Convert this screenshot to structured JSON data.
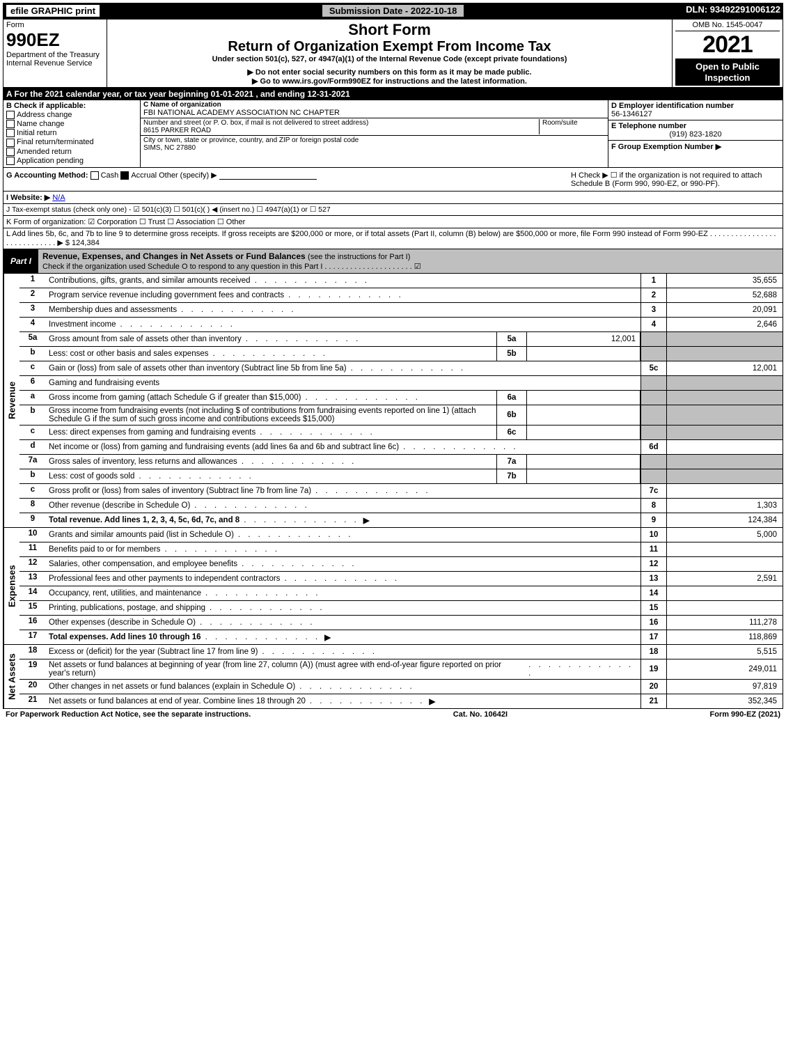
{
  "topbar": {
    "efile": "efile GRAPHIC print",
    "submission": "Submission Date - 2022-10-18",
    "dln": "DLN: 93492291006122"
  },
  "header": {
    "form": "Form",
    "form_num": "990EZ",
    "dept": "Department of the Treasury",
    "irs": "Internal Revenue Service",
    "short_form": "Short Form",
    "title": "Return of Organization Exempt From Income Tax",
    "under": "Under section 501(c), 527, or 4947(a)(1) of the Internal Revenue Code (except private foundations)",
    "no_ssn": "▶ Do not enter social security numbers on this form as it may be made public.",
    "goto": "▶ Go to www.irs.gov/Form990EZ for instructions and the latest information.",
    "omb": "OMB No. 1545-0047",
    "year": "2021",
    "open": "Open to Public Inspection"
  },
  "section_a": "A  For the 2021 calendar year, or tax year beginning 01-01-2021 , and ending 12-31-2021",
  "section_b": {
    "label": "B  Check if applicable:",
    "opts": [
      "Address change",
      "Name change",
      "Initial return",
      "Final return/terminated",
      "Amended return",
      "Application pending"
    ]
  },
  "section_c": {
    "name_lbl": "C Name of organization",
    "name": "FBI NATIONAL ACADEMY ASSOCIATION NC CHAPTER",
    "street_lbl": "Number and street (or P. O. box, if mail is not delivered to street address)",
    "room_lbl": "Room/suite",
    "street": "8615 PARKER ROAD",
    "city_lbl": "City or town, state or province, country, and ZIP or foreign postal code",
    "city": "SIMS, NC  27880"
  },
  "section_d": {
    "ein_lbl": "D Employer identification number",
    "ein": "56-1346127",
    "tel_lbl": "E Telephone number",
    "tel": "(919) 823-1820",
    "grp_lbl": "F Group Exemption Number  ▶"
  },
  "row_g": {
    "g": "G Accounting Method:",
    "cash": "Cash",
    "accrual": "Accrual",
    "other": "Other (specify) ▶",
    "h": "H  Check ▶ ☐ if the organization is not required to attach Schedule B (Form 990, 990-EZ, or 990-PF)."
  },
  "row_i": {
    "label": "I Website: ▶",
    "val": "N/A"
  },
  "row_j": "J Tax-exempt status (check only one) - ☑ 501(c)(3) ☐ 501(c)(  ) ◀ (insert no.) ☐ 4947(a)(1) or ☐ 527",
  "row_k": "K Form of organization:  ☑ Corporation  ☐ Trust  ☐ Association  ☐ Other",
  "row_l": {
    "text": "L Add lines 5b, 6c, and 7b to line 9 to determine gross receipts. If gross receipts are $200,000 or more, or if total assets (Part II, column (B) below) are $500,000 or more, file Form 990 instead of Form 990-EZ  . . . . . . . . . . . . . . . . . . . . . . . . . . . . ▶ $",
    "amount": "124,384"
  },
  "part1": {
    "label": "Part I",
    "title": "Revenue, Expenses, and Changes in Net Assets or Fund Balances",
    "sub": "(see the instructions for Part I)",
    "check": "Check if the organization used Schedule O to respond to any question in this Part I . . . . . . . . . . . . . . . . . . . . . ☑"
  },
  "revenue_label": "Revenue",
  "expenses_label": "Expenses",
  "netassets_label": "Net Assets",
  "lines": {
    "l1": {
      "n": "1",
      "d": "Contributions, gifts, grants, and similar amounts received",
      "r": "1",
      "a": "35,655"
    },
    "l2": {
      "n": "2",
      "d": "Program service revenue including government fees and contracts",
      "r": "2",
      "a": "52,688"
    },
    "l3": {
      "n": "3",
      "d": "Membership dues and assessments",
      "r": "3",
      "a": "20,091"
    },
    "l4": {
      "n": "4",
      "d": "Investment income",
      "r": "4",
      "a": "2,646"
    },
    "l5a": {
      "n": "5a",
      "d": "Gross amount from sale of assets other than inventory",
      "sb": "5a",
      "sv": "12,001"
    },
    "l5b": {
      "n": "b",
      "d": "Less: cost or other basis and sales expenses",
      "sb": "5b",
      "sv": ""
    },
    "l5c": {
      "n": "c",
      "d": "Gain or (loss) from sale of assets other than inventory (Subtract line 5b from line 5a)",
      "r": "5c",
      "a": "12,001"
    },
    "l6": {
      "n": "6",
      "d": "Gaming and fundraising events"
    },
    "l6a": {
      "n": "a",
      "d": "Gross income from gaming (attach Schedule G if greater than $15,000)",
      "sb": "6a",
      "sv": ""
    },
    "l6b": {
      "n": "b",
      "d": "Gross income from fundraising events (not including $                of contributions from fundraising events reported on line 1) (attach Schedule G if the sum of such gross income and contributions exceeds $15,000)",
      "sb": "6b",
      "sv": ""
    },
    "l6c": {
      "n": "c",
      "d": "Less: direct expenses from gaming and fundraising events",
      "sb": "6c",
      "sv": ""
    },
    "l6d": {
      "n": "d",
      "d": "Net income or (loss) from gaming and fundraising events (add lines 6a and 6b and subtract line 6c)",
      "r": "6d",
      "a": ""
    },
    "l7a": {
      "n": "7a",
      "d": "Gross sales of inventory, less returns and allowances",
      "sb": "7a",
      "sv": ""
    },
    "l7b": {
      "n": "b",
      "d": "Less: cost of goods sold",
      "sb": "7b",
      "sv": ""
    },
    "l7c": {
      "n": "c",
      "d": "Gross profit or (loss) from sales of inventory (Subtract line 7b from line 7a)",
      "r": "7c",
      "a": ""
    },
    "l8": {
      "n": "8",
      "d": "Other revenue (describe in Schedule O)",
      "r": "8",
      "a": "1,303"
    },
    "l9": {
      "n": "9",
      "d": "Total revenue. Add lines 1, 2, 3, 4, 5c, 6d, 7c, and 8",
      "r": "9",
      "a": "124,384",
      "arrow": true,
      "bold": true
    },
    "l10": {
      "n": "10",
      "d": "Grants and similar amounts paid (list in Schedule O)",
      "r": "10",
      "a": "5,000"
    },
    "l11": {
      "n": "11",
      "d": "Benefits paid to or for members",
      "r": "11",
      "a": ""
    },
    "l12": {
      "n": "12",
      "d": "Salaries, other compensation, and employee benefits",
      "r": "12",
      "a": ""
    },
    "l13": {
      "n": "13",
      "d": "Professional fees and other payments to independent contractors",
      "r": "13",
      "a": "2,591"
    },
    "l14": {
      "n": "14",
      "d": "Occupancy, rent, utilities, and maintenance",
      "r": "14",
      "a": ""
    },
    "l15": {
      "n": "15",
      "d": "Printing, publications, postage, and shipping",
      "r": "15",
      "a": ""
    },
    "l16": {
      "n": "16",
      "d": "Other expenses (describe in Schedule O)",
      "r": "16",
      "a": "111,278"
    },
    "l17": {
      "n": "17",
      "d": "Total expenses. Add lines 10 through 16",
      "r": "17",
      "a": "118,869",
      "arrow": true,
      "bold": true
    },
    "l18": {
      "n": "18",
      "d": "Excess or (deficit) for the year (Subtract line 17 from line 9)",
      "r": "18",
      "a": "5,515"
    },
    "l19": {
      "n": "19",
      "d": "Net assets or fund balances at beginning of year (from line 27, column (A)) (must agree with end-of-year figure reported on prior year's return)",
      "r": "19",
      "a": "249,011"
    },
    "l20": {
      "n": "20",
      "d": "Other changes in net assets or fund balances (explain in Schedule O)",
      "r": "20",
      "a": "97,819"
    },
    "l21": {
      "n": "21",
      "d": "Net assets or fund balances at end of year. Combine lines 18 through 20",
      "r": "21",
      "a": "352,345",
      "arrow": true
    }
  },
  "footer": {
    "left": "For Paperwork Reduction Act Notice, see the separate instructions.",
    "mid": "Cat. No. 10642I",
    "right": "Form 990-EZ (2021)"
  }
}
